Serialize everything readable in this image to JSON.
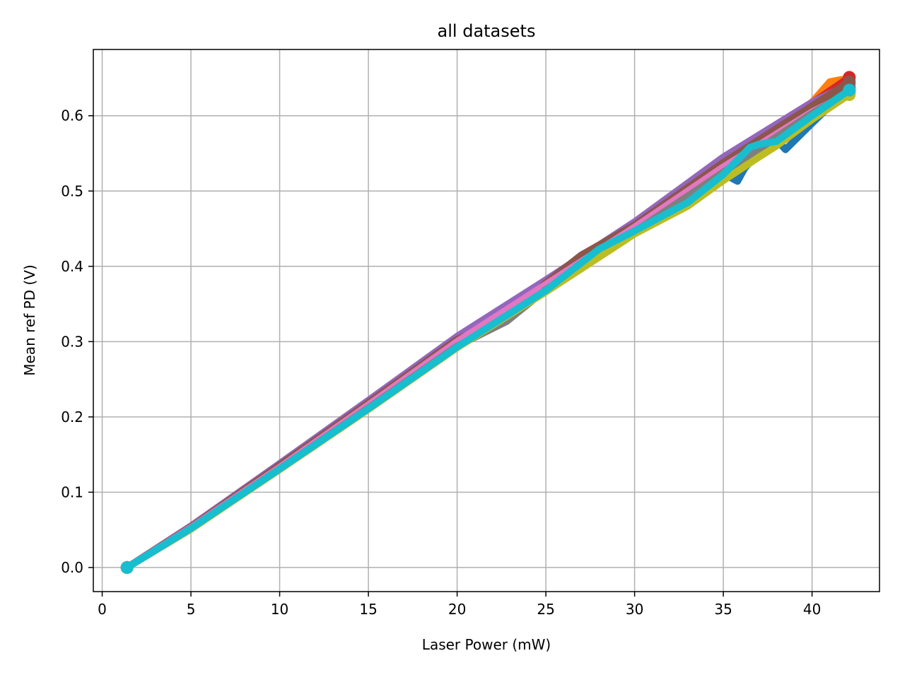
{
  "chart_data": {
    "type": "line",
    "title": "all datasets",
    "xlabel": "Laser Power (mW)",
    "ylabel": "Mean ref PD (V)",
    "xlim": [
      -0.5,
      43.8
    ],
    "ylim": [
      -0.032,
      0.688
    ],
    "xticks": [
      0,
      5,
      10,
      15,
      20,
      25,
      30,
      35,
      40
    ],
    "yticks": [
      0.0,
      0.1,
      0.2,
      0.3,
      0.4,
      0.5,
      0.6
    ],
    "ytick_labels": [
      "0.0",
      "0.1",
      "0.2",
      "0.3",
      "0.4",
      "0.5",
      "0.6"
    ],
    "grid": true,
    "legend": "none",
    "series": [
      {
        "color": "#1f77b4",
        "x": [
          1.4,
          5,
          10,
          15,
          20,
          22.8,
          25,
          28,
          30,
          33,
          35,
          35.8,
          36.2,
          37,
          38,
          38.5,
          40,
          42.1
        ],
        "y": [
          0.0,
          0.051,
          0.131,
          0.212,
          0.295,
          0.334,
          0.369,
          0.418,
          0.448,
          0.49,
          0.523,
          0.513,
          0.53,
          0.552,
          0.568,
          0.555,
          0.59,
          0.638
        ]
      },
      {
        "color": "#ff7f0e",
        "x": [
          1.4,
          5,
          10,
          15,
          20,
          25,
          30,
          35,
          38,
          40,
          41,
          42.1
        ],
        "y": [
          0.0,
          0.053,
          0.134,
          0.216,
          0.302,
          0.378,
          0.453,
          0.533,
          0.582,
          0.618,
          0.645,
          0.65
        ]
      },
      {
        "color": "#2ca02c",
        "x": [
          1.4,
          5,
          10,
          15,
          20,
          25,
          30,
          35,
          40,
          42.1
        ],
        "y": [
          0.0,
          0.052,
          0.132,
          0.213,
          0.297,
          0.372,
          0.449,
          0.527,
          0.607,
          0.635
        ]
      },
      {
        "color": "#d62728",
        "x": [
          1.4,
          5,
          10,
          15,
          20,
          25,
          30,
          35,
          40,
          42.1
        ],
        "y": [
          0.0,
          0.055,
          0.137,
          0.22,
          0.305,
          0.381,
          0.457,
          0.543,
          0.617,
          0.651
        ]
      },
      {
        "color": "#9467bd",
        "x": [
          1.4,
          5,
          10,
          15,
          20,
          25,
          30,
          35,
          40,
          42.1
        ],
        "y": [
          0.0,
          0.055,
          0.138,
          0.222,
          0.307,
          0.382,
          0.459,
          0.545,
          0.618,
          0.642
        ]
      },
      {
        "color": "#8c564b",
        "x": [
          1.4,
          5,
          10,
          15,
          20,
          22.8,
          25,
          27,
          30,
          35,
          40,
          42.1
        ],
        "y": [
          0.0,
          0.054,
          0.136,
          0.219,
          0.303,
          0.33,
          0.378,
          0.415,
          0.455,
          0.538,
          0.613,
          0.645
        ]
      },
      {
        "color": "#e377c2",
        "x": [
          1.4,
          5,
          10,
          15,
          20,
          25,
          30,
          35,
          40,
          42.1
        ],
        "y": [
          0.0,
          0.053,
          0.133,
          0.216,
          0.3,
          0.376,
          0.452,
          0.532,
          0.605,
          0.63
        ]
      },
      {
        "color": "#7f7f7f",
        "x": [
          1.4,
          5,
          10,
          15,
          20,
          22.8,
          25,
          30,
          35,
          40,
          42.1
        ],
        "y": [
          0.0,
          0.052,
          0.131,
          0.212,
          0.294,
          0.327,
          0.369,
          0.446,
          0.525,
          0.603,
          0.632
        ]
      },
      {
        "color": "#bcbd22",
        "x": [
          1.4,
          5,
          10,
          15,
          20,
          25,
          30,
          33,
          35,
          37,
          38,
          40,
          42.1
        ],
        "y": [
          0.0,
          0.051,
          0.13,
          0.21,
          0.292,
          0.366,
          0.443,
          0.48,
          0.514,
          0.545,
          0.56,
          0.595,
          0.628
        ]
      },
      {
        "color": "#17becf",
        "x": [
          1.4,
          5,
          10,
          15,
          20,
          25,
          28,
          30,
          33,
          35,
          36.5,
          37,
          38,
          40,
          42.1
        ],
        "y": [
          0.0,
          0.052,
          0.131,
          0.211,
          0.293,
          0.368,
          0.423,
          0.447,
          0.485,
          0.522,
          0.558,
          0.562,
          0.566,
          0.6,
          0.634
        ]
      }
    ]
  }
}
